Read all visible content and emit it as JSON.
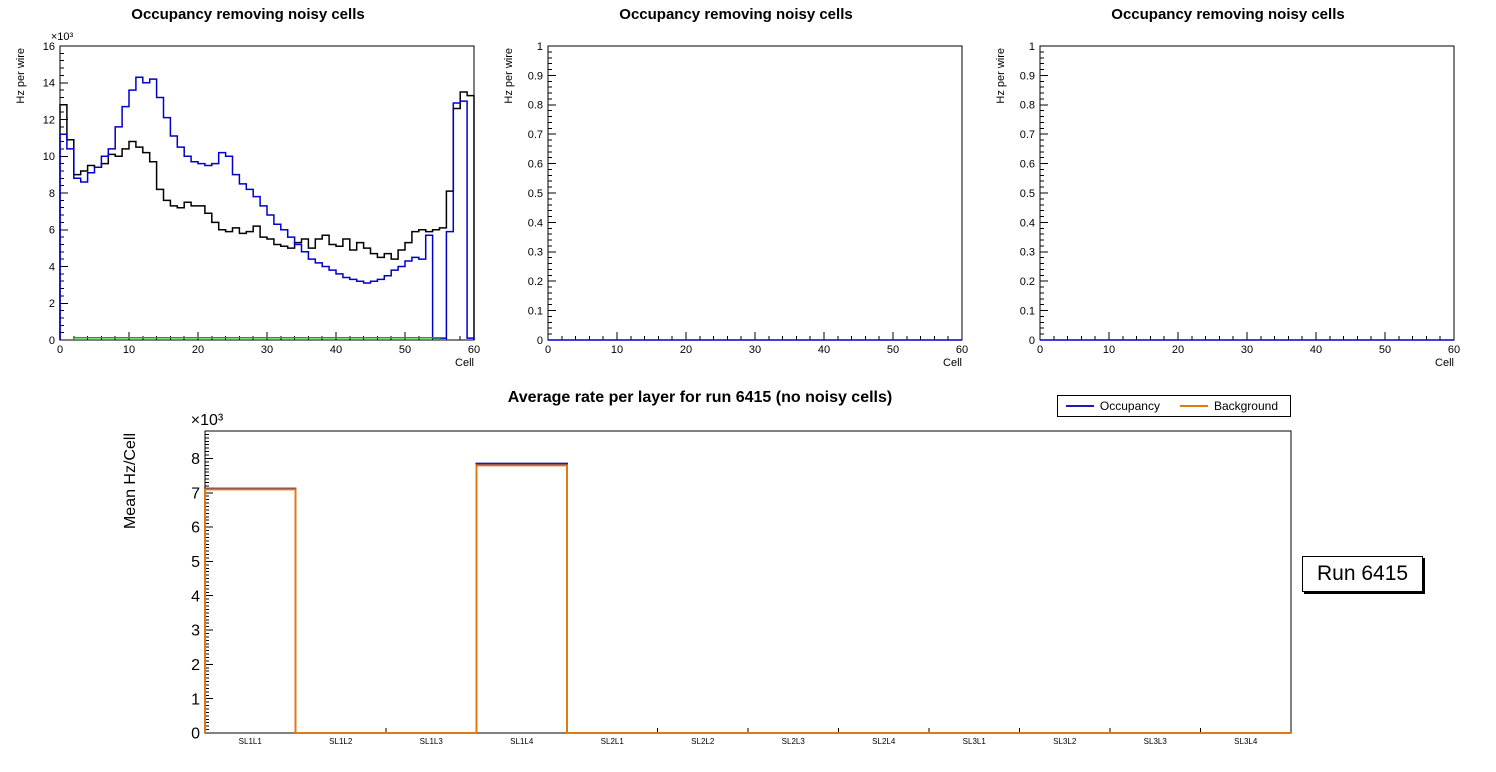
{
  "page": {
    "background": "#ffffff"
  },
  "run_box": {
    "label": "Run 6415"
  },
  "legend": {
    "items": [
      {
        "label": "Occupancy",
        "color": "#1f1ca8"
      },
      {
        "label": "Background",
        "color": "#e0790f"
      }
    ]
  },
  "chart_data": "see charts",
  "charts": [
    {
      "type": "histogram-step",
      "title": "Occupancy removing noisy cells",
      "xlabel": "Cell",
      "ylabel": "Hz per wire",
      "y_exponent": "×10³",
      "xlim": [
        0,
        60
      ],
      "ylim": [
        0,
        16
      ],
      "x_ticks": [
        0,
        10,
        20,
        30,
        40,
        50,
        60
      ],
      "y_ticks": [
        0,
        2,
        4,
        6,
        8,
        10,
        12,
        14,
        16
      ],
      "series": [
        {
          "name": "occupancy-raw-black",
          "color": "#000000",
          "values": [
            12.8,
            10.9,
            9.0,
            9.2,
            9.5,
            9.4,
            9.6,
            10.1,
            10.0,
            10.4,
            10.8,
            10.5,
            10.2,
            9.7,
            8.2,
            7.6,
            7.3,
            7.2,
            7.5,
            7.3,
            7.3,
            6.9,
            6.4,
            6.0,
            5.9,
            6.1,
            5.8,
            5.9,
            6.2,
            5.6,
            5.5,
            5.2,
            5.1,
            5.0,
            5.3,
            5.5,
            5.0,
            5.5,
            5.7,
            5.2,
            5.1,
            5.5,
            4.9,
            5.3,
            5.0,
            4.7,
            4.5,
            4.7,
            4.4,
            4.9,
            5.3,
            5.9,
            6.0,
            5.9,
            6.0,
            6.1,
            8.1,
            12.6,
            13.5,
            13.3
          ]
        },
        {
          "name": "occupancy-clean-blue",
          "color": "#0000cc",
          "values": [
            11.2,
            10.4,
            8.8,
            8.6,
            9.1,
            9.4,
            10.0,
            10.4,
            11.6,
            12.7,
            13.6,
            14.3,
            14.0,
            14.2,
            13.2,
            12.1,
            11.1,
            10.5,
            10.0,
            9.7,
            9.6,
            9.5,
            9.6,
            10.2,
            10.0,
            9.0,
            8.5,
            8.2,
            7.8,
            7.3,
            6.8,
            6.3,
            6.0,
            5.6,
            5.2,
            4.8,
            4.4,
            4.2,
            4.0,
            3.8,
            3.6,
            3.4,
            3.3,
            3.2,
            3.1,
            3.2,
            3.3,
            3.5,
            3.8,
            4.0,
            4.3,
            4.5,
            4.4,
            5.7,
            0.1,
            0.1,
            5.9,
            12.9,
            13.0,
            0.1
          ]
        },
        {
          "name": "noisy-cells-green",
          "color": "#00b400",
          "values": [
            null,
            null,
            0.12,
            0.12,
            0.12,
            0.12,
            0.12,
            0.12,
            0.12,
            0.12,
            0.12,
            0.12,
            0.12,
            0.12,
            0.12,
            0.12,
            0.12,
            0.12,
            0.12,
            0.12,
            0.12,
            0.12,
            0.12,
            0.12,
            0.12,
            0.12,
            0.12,
            0.12,
            0.12,
            0.12,
            0.12,
            0.12,
            0.12,
            0.12,
            0.12,
            0.12,
            0.12,
            0.12,
            0.12,
            0.12,
            0.12,
            0.12,
            0.12,
            0.12,
            0.12,
            0.12,
            0.12,
            0.12,
            0.12,
            0.12,
            0.12,
            0.12,
            0.12,
            0.12,
            0.12,
            null,
            null,
            null,
            null,
            null
          ]
        }
      ]
    },
    {
      "type": "histogram-step",
      "title": "Occupancy removing noisy cells",
      "xlabel": "Cell",
      "ylabel": "Hz per wire",
      "xlim": [
        0,
        60
      ],
      "ylim": [
        0,
        1
      ],
      "x_ticks": [
        0,
        10,
        20,
        30,
        40,
        50,
        60
      ],
      "y_ticks": [
        0,
        0.1,
        0.2,
        0.3,
        0.4,
        0.5,
        0.6,
        0.7,
        0.8,
        0.9,
        1
      ],
      "series": [
        {
          "name": "empty-occupancy-blue",
          "color": "#0000cc",
          "values": [
            0,
            0
          ]
        }
      ]
    },
    {
      "type": "histogram-step",
      "title": "Occupancy removing noisy cells",
      "xlabel": "Cell",
      "ylabel": "Hz per wire",
      "xlim": [
        0,
        60
      ],
      "ylim": [
        0,
        1
      ],
      "x_ticks": [
        0,
        10,
        20,
        30,
        40,
        50,
        60
      ],
      "y_ticks": [
        0,
        0.1,
        0.2,
        0.3,
        0.4,
        0.5,
        0.6,
        0.7,
        0.8,
        0.9,
        1
      ],
      "series": [
        {
          "name": "empty-occupancy-blue",
          "color": "#0000cc",
          "values": [
            0,
            0
          ]
        }
      ]
    },
    {
      "type": "histogram-step",
      "title": "Average rate per layer for run 6415 (no noisy cells)",
      "ylabel": "Mean Hz/Cell",
      "y_exponent": "×10³",
      "ylim": [
        0,
        8.8
      ],
      "y_ticks": [
        0,
        1,
        2,
        3,
        4,
        5,
        6,
        7,
        8
      ],
      "categories": [
        "SL1L1",
        "SL1L2",
        "SL1L3",
        "SL1L4",
        "SL2L1",
        "SL2L2",
        "SL2L3",
        "SL2L4",
        "SL3L1",
        "SL3L2",
        "SL3L3",
        "SL3L4"
      ],
      "series": [
        {
          "name": "occupancy",
          "color": "#1f1ca8",
          "values": [
            7.12,
            0,
            0,
            7.85,
            0,
            0,
            0,
            0,
            0,
            0,
            0,
            0
          ]
        },
        {
          "name": "background",
          "color": "#e0790f",
          "values": [
            7.1,
            0,
            0,
            7.8,
            0,
            0,
            0,
            0,
            0,
            0,
            0,
            0
          ]
        }
      ]
    }
  ]
}
